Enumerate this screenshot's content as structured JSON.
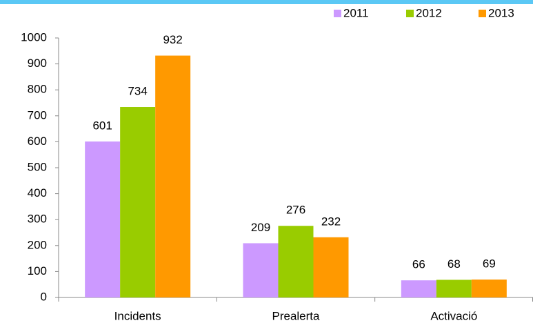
{
  "chart_data": {
    "type": "bar",
    "categories": [
      "Incidents",
      "Prealerta",
      "Activació"
    ],
    "series": [
      {
        "name": "2011",
        "color": "#cc99ff",
        "values": [
          601,
          209,
          66
        ]
      },
      {
        "name": "2012",
        "color": "#99cc00",
        "values": [
          734,
          276,
          68
        ]
      },
      {
        "name": "2013",
        "color": "#ff9900",
        "values": [
          932,
          232,
          69
        ]
      }
    ],
    "ylim": [
      0,
      1000
    ],
    "yticks": [
      0,
      100,
      200,
      300,
      400,
      500,
      600,
      700,
      800,
      900,
      1000
    ],
    "grid": false,
    "legend": "top-right"
  }
}
